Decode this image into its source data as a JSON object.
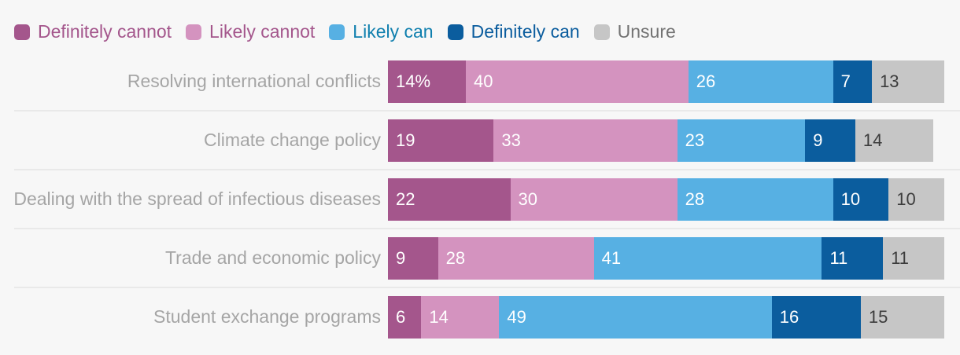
{
  "background_color": "#f7f7f7",
  "divider_color": "#e9e9e9",
  "legend": {
    "position": "top",
    "items": [
      {
        "label": "Definitely cannot",
        "swatch_color": "#a4568c",
        "text_color": "#a4568c"
      },
      {
        "label": "Likely cannot",
        "swatch_color": "#d493bf",
        "text_color": "#a4568c"
      },
      {
        "label": "Likely can",
        "swatch_color": "#57b0e3",
        "text_color": "#0f7fae"
      },
      {
        "label": "Definitely can",
        "swatch_color": "#0b5d9e",
        "text_color": "#0b5d9e"
      },
      {
        "label": "Unsure",
        "swatch_color": "#c6c6c6",
        "text_color": "#737373"
      }
    ]
  },
  "chart_data": {
    "type": "bar",
    "orientation": "horizontal",
    "stacked": true,
    "unit": "percent",
    "x_max": 100,
    "grid": false,
    "legend_position": "top",
    "category_label_color": "#a5a5a5",
    "categories": [
      "Resolving international conflicts",
      "Climate change policy",
      "Dealing with the spread of infectious diseases",
      "Trade and economic policy",
      "Student exchange programs"
    ],
    "series": [
      {
        "name": "Definitely cannot",
        "color": "#a4568c",
        "value_text_color": "#ffffff",
        "values": [
          14,
          19,
          22,
          9,
          6
        ]
      },
      {
        "name": "Likely cannot",
        "color": "#d493bf",
        "value_text_color": "#ffffff",
        "values": [
          40,
          33,
          30,
          28,
          14
        ]
      },
      {
        "name": "Likely can",
        "color": "#57b0e3",
        "value_text_color": "#ffffff",
        "values": [
          26,
          23,
          28,
          41,
          49
        ]
      },
      {
        "name": "Definitely can",
        "color": "#0b5d9e",
        "value_text_color": "#ffffff",
        "values": [
          7,
          9,
          10,
          11,
          16
        ]
      },
      {
        "name": "Unsure",
        "color": "#c6c6c6",
        "value_text_color": "#3c3c3c",
        "values": [
          13,
          14,
          10,
          11,
          15
        ]
      }
    ],
    "value_labels": [
      [
        "14%",
        "40",
        "26",
        "7",
        "13"
      ],
      [
        "19",
        "33",
        "23",
        "9",
        "14"
      ],
      [
        "22",
        "30",
        "28",
        "10",
        "10"
      ],
      [
        "9",
        "28",
        "41",
        "11",
        "11"
      ],
      [
        "6",
        "14",
        "49",
        "16",
        "15"
      ]
    ]
  }
}
